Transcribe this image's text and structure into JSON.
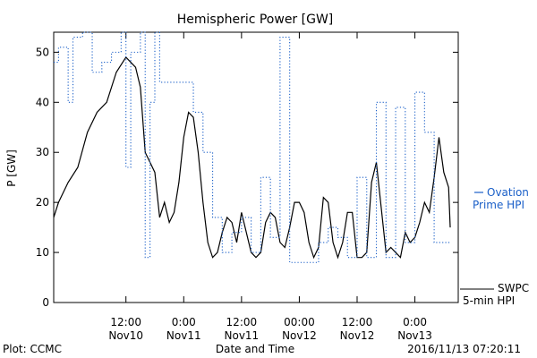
{
  "chart_data": {
    "type": "line",
    "title": "Hemispheric Power [GW]",
    "ylabel": "P [GW]",
    "xlabel": "Date and Time",
    "xlim": [
      "2016-11-09T21:00",
      "2016-11-13T09:00"
    ],
    "ylim": [
      0,
      54
    ],
    "grid": false,
    "yticks": [
      0,
      10,
      20,
      30,
      40,
      50
    ],
    "xticks": [
      {
        "t": "2016-11-10T12:00",
        "label1": "12:00",
        "label2": "Nov10"
      },
      {
        "t": "2016-11-11T00:00",
        "label1": "0:00",
        "label2": "Nov11"
      },
      {
        "t": "2016-11-11T12:00",
        "label1": "12:00",
        "label2": "Nov11"
      },
      {
        "t": "2016-11-12T00:00",
        "label1": "00:00",
        "label2": "Nov12"
      },
      {
        "t": "2016-11-12T12:00",
        "label1": "12:00",
        "label2": "Nov12"
      },
      {
        "t": "2016-11-13T00:00",
        "label1": "0:00",
        "label2": "Nov13"
      }
    ],
    "footer_left": "Plot: CCMC",
    "footer_right": "2016/11/13 07:20:11",
    "series": [
      {
        "name": "SWPC 5-min HPI",
        "name_line1": "SWPC",
        "name_line2": "5-min HPI",
        "color": "#000000",
        "style": "solid",
        "x": [
          "2016-11-09T21:00",
          "2016-11-09T22:00",
          "2016-11-10T00:00",
          "2016-11-10T02:00",
          "2016-11-10T04:00",
          "2016-11-10T06:00",
          "2016-11-10T08:00",
          "2016-11-10T10:00",
          "2016-11-10T12:00",
          "2016-11-10T14:00",
          "2016-11-10T15:00",
          "2016-11-10T16:00",
          "2016-11-10T17:00",
          "2016-11-10T18:00",
          "2016-11-10T19:00",
          "2016-11-10T20:00",
          "2016-11-10T21:00",
          "2016-11-10T22:00",
          "2016-11-10T23:00",
          "2016-11-11T00:00",
          "2016-11-11T01:00",
          "2016-11-11T02:00",
          "2016-11-11T03:00",
          "2016-11-11T04:00",
          "2016-11-11T05:00",
          "2016-11-11T06:00",
          "2016-11-11T07:00",
          "2016-11-11T08:00",
          "2016-11-11T09:00",
          "2016-11-11T10:00",
          "2016-11-11T11:00",
          "2016-11-11T12:00",
          "2016-11-11T13:00",
          "2016-11-11T14:00",
          "2016-11-11T15:00",
          "2016-11-11T16:00",
          "2016-11-11T17:00",
          "2016-11-11T18:00",
          "2016-11-11T19:00",
          "2016-11-11T20:00",
          "2016-11-11T21:00",
          "2016-11-11T22:00",
          "2016-11-11T23:00",
          "2016-11-12T00:00",
          "2016-11-12T01:00",
          "2016-11-12T02:00",
          "2016-11-12T03:00",
          "2016-11-12T04:00",
          "2016-11-12T05:00",
          "2016-11-12T06:00",
          "2016-11-12T07:00",
          "2016-11-12T08:00",
          "2016-11-12T09:00",
          "2016-11-12T10:00",
          "2016-11-12T11:00",
          "2016-11-12T12:00",
          "2016-11-12T13:00",
          "2016-11-12T14:00",
          "2016-11-12T15:00",
          "2016-11-12T16:00",
          "2016-11-12T17:00",
          "2016-11-12T18:00",
          "2016-11-12T19:00",
          "2016-11-12T20:00",
          "2016-11-12T21:00",
          "2016-11-12T22:00",
          "2016-11-12T23:00",
          "2016-11-13T00:00",
          "2016-11-13T01:00",
          "2016-11-13T02:00",
          "2016-11-13T03:00",
          "2016-11-13T04:00",
          "2016-11-13T05:00",
          "2016-11-13T06:00",
          "2016-11-13T07:00",
          "2016-11-13T07:20"
        ],
        "y": [
          17,
          20,
          24,
          27,
          34,
          38,
          40,
          46,
          49,
          47,
          43,
          30,
          28,
          26,
          17,
          20,
          16,
          18,
          24,
          33,
          38,
          37,
          30,
          20,
          12,
          9,
          10,
          14,
          17,
          16,
          12,
          18,
          14,
          10,
          9,
          10,
          16,
          18,
          17,
          12,
          11,
          15,
          20,
          20,
          18,
          12,
          9,
          11,
          21,
          20,
          12,
          9,
          12,
          18,
          18,
          9,
          9,
          10,
          24,
          28,
          19,
          10,
          11,
          10,
          9,
          14,
          12,
          13,
          16,
          20,
          18,
          25,
          33,
          26,
          23,
          15
        ]
      },
      {
        "name": "Ovation Prime HPI",
        "name_line1": "Ovation",
        "name_line2": "Prime HPI",
        "color": "#1a5fc8",
        "style": "dotted",
        "x": [
          "2016-11-09T21:00",
          "2016-11-09T22:00",
          "2016-11-10T00:00",
          "2016-11-10T01:00",
          "2016-11-10T03:00",
          "2016-11-10T05:00",
          "2016-11-10T07:00",
          "2016-11-10T09:00",
          "2016-11-10T11:00",
          "2016-11-10T12:00",
          "2016-11-10T13:00",
          "2016-11-10T15:00",
          "2016-11-10T16:00",
          "2016-11-10T17:00",
          "2016-11-10T18:00",
          "2016-11-10T19:00",
          "2016-11-10T20:00",
          "2016-11-10T21:00",
          "2016-11-10T22:00",
          "2016-11-10T23:00",
          "2016-11-11T00:00",
          "2016-11-11T02:00",
          "2016-11-11T04:00",
          "2016-11-11T06:00",
          "2016-11-11T08:00",
          "2016-11-11T10:00",
          "2016-11-11T12:00",
          "2016-11-11T14:00",
          "2016-11-11T16:00",
          "2016-11-11T18:00",
          "2016-11-11T20:00",
          "2016-11-11T22:00",
          "2016-11-11T23:00",
          "2016-11-12T00:00",
          "2016-11-12T02:00",
          "2016-11-12T04:00",
          "2016-11-12T06:00",
          "2016-11-12T08:00",
          "2016-11-12T10:00",
          "2016-11-12T12:00",
          "2016-11-12T14:00",
          "2016-11-12T16:00",
          "2016-11-12T18:00",
          "2016-11-12T20:00",
          "2016-11-12T22:00",
          "2016-11-13T00:00",
          "2016-11-13T02:00",
          "2016-11-13T04:00",
          "2016-11-13T06:00",
          "2016-11-13T07:20"
        ],
        "y": [
          48,
          51,
          40,
          53,
          54,
          46,
          48,
          50,
          54,
          27,
          50,
          54,
          9,
          40,
          54,
          44,
          44,
          44,
          44,
          44,
          44,
          38,
          30,
          17,
          10,
          14,
          17,
          10,
          25,
          13,
          53,
          8,
          8,
          8,
          8,
          12,
          15,
          13,
          9,
          25,
          9,
          40,
          9,
          39,
          12,
          42,
          34,
          12,
          12,
          12
        ]
      }
    ]
  }
}
